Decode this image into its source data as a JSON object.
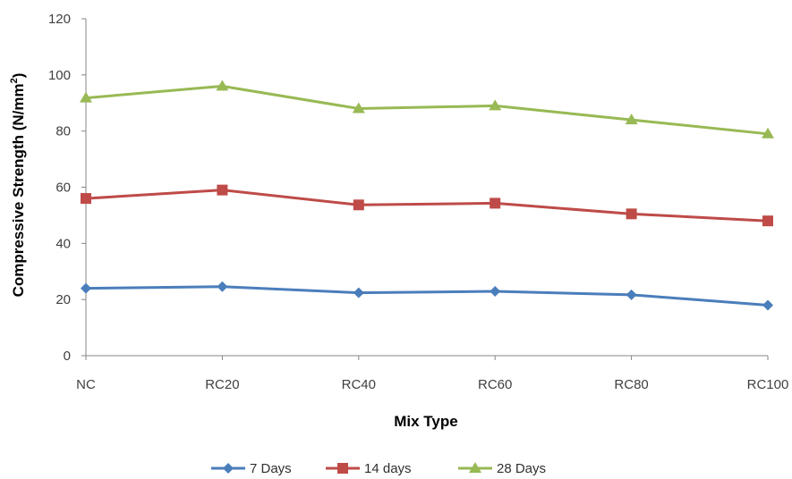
{
  "chart_data": {
    "type": "line",
    "categories": [
      "NC",
      "RC20",
      "RC40",
      "RC60",
      "RC80",
      "RC100"
    ],
    "series": [
      {
        "name": "7 Days",
        "values": [
          24,
          24.6,
          22.4,
          22.9,
          21.7,
          18
        ],
        "color": "#4a7ebb",
        "marker": "diamond"
      },
      {
        "name": "14 days",
        "values": [
          56,
          59,
          53.7,
          54.3,
          50.5,
          48
        ],
        "color": "#be4b48",
        "marker": "square"
      },
      {
        "name": "28 Days",
        "values": [
          91.8,
          96,
          88,
          89,
          84,
          79
        ],
        "color": "#98b954",
        "marker": "triangle"
      }
    ],
    "xlabel": "Mix Type",
    "ylabel_main": "Compressive Strength (N/mm",
    "ylabel_sup": "2",
    "ylabel_end": ")",
    "ylim": [
      0,
      120
    ],
    "yticks": [
      "0",
      "20",
      "40",
      "60",
      "80",
      "100",
      "120"
    ],
    "grid": false,
    "legend_position": "bottom"
  }
}
